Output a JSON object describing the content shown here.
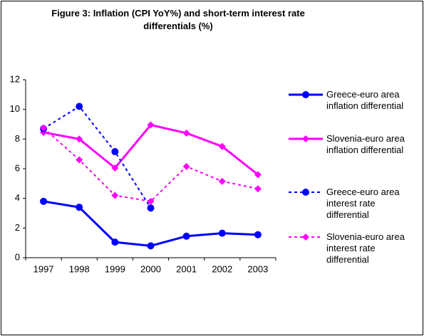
{
  "chart_data": {
    "type": "line",
    "title": "Figure 3: Inflation (CPI YoY%) and short-term interest rate differentials (%)",
    "categories": [
      "1997",
      "1998",
      "1999",
      "2000",
      "2001",
      "2002",
      "2003"
    ],
    "series": [
      {
        "name": "Greece-euro area inflation differential",
        "color": "#0000ff",
        "marker": "circle",
        "dashed": false,
        "values": [
          3.8,
          3.4,
          1.05,
          0.8,
          1.45,
          1.65,
          1.55
        ]
      },
      {
        "name": "Slovenia-euro area inflation differential",
        "color": "#ff00ff",
        "marker": "diamond",
        "dashed": false,
        "values": [
          8.45,
          8.0,
          6.05,
          8.95,
          8.4,
          7.5,
          5.6
        ]
      },
      {
        "name": "Greece-euro area interest rate differential",
        "color": "#0000ff",
        "marker": "circle",
        "dashed": true,
        "values": [
          8.7,
          10.2,
          7.15,
          3.35,
          null,
          null,
          null
        ]
      },
      {
        "name": "Slovenia-euro area interest rate differential",
        "color": "#ff00ff",
        "marker": "diamond",
        "dashed": true,
        "values": [
          8.75,
          6.6,
          4.2,
          3.8,
          6.15,
          5.15,
          4.65
        ]
      }
    ],
    "ylim": [
      0,
      12
    ],
    "yticks": [
      0,
      2,
      4,
      6,
      8,
      10,
      12
    ],
    "grid": false
  }
}
